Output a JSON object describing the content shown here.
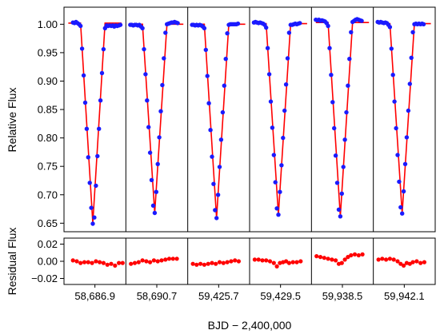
{
  "chart_data": {
    "type": "scatter",
    "xlabel": "BJD − 2,400,000",
    "colors": {
      "data_points": "#1a1aff",
      "model": "#ff0000",
      "residuals": "#ff0000",
      "frame": "#000000"
    },
    "top_panel": {
      "ylabel": "Relative Flux",
      "ylim": [
        0.635,
        1.03
      ],
      "yticks": [
        1.0,
        0.95,
        0.9,
        0.85,
        0.8,
        0.75,
        0.7,
        0.65
      ],
      "ytick_labels": [
        "1.00",
        "0.95",
        "0.90",
        "0.85",
        "0.80",
        "0.75",
        "0.70",
        "0.65"
      ]
    },
    "bottom_panel": {
      "ylabel": "Residual Flux",
      "ylim": [
        -0.027,
        0.027
      ],
      "yticks": [
        0.02,
        0.0,
        -0.02
      ],
      "ytick_labels": [
        "0.02",
        "0.00",
        "−0.02"
      ]
    },
    "windows": [
      {
        "label": "58,686.9",
        "depth": 0.65,
        "oot": 1.002,
        "points": [
          [
            -0.4,
            1.003
          ],
          [
            -0.36,
            1.002
          ],
          [
            -0.32,
            1.004
          ],
          [
            -0.28,
            1.002
          ],
          [
            -0.24,
            1.0
          ],
          [
            -0.2,
            0.997
          ],
          [
            -0.16,
            0.957
          ],
          [
            -0.12,
            0.91
          ],
          [
            -0.08,
            0.862
          ],
          [
            -0.04,
            0.816
          ],
          [
            0.0,
            0.766
          ],
          [
            0.04,
            0.721
          ],
          [
            0.08,
            0.677
          ],
          [
            0.12,
            0.649
          ],
          [
            0.16,
            0.66
          ],
          [
            0.2,
            0.716
          ],
          [
            0.24,
            0.768
          ],
          [
            0.28,
            0.816
          ],
          [
            0.32,
            0.866
          ],
          [
            0.36,
            0.914
          ],
          [
            0.4,
            0.956
          ],
          [
            0.44,
            0.993
          ],
          [
            0.48,
            0.998
          ],
          [
            0.52,
            0.997
          ],
          [
            0.56,
            0.998
          ],
          [
            0.6,
            0.997
          ],
          [
            0.64,
            0.998
          ],
          [
            0.68,
            0.996
          ],
          [
            0.72,
            0.998
          ],
          [
            0.76,
            0.997
          ],
          [
            0.8,
            0.998
          ],
          [
            0.84,
            0.999
          ]
        ],
        "residuals": [
          [
            -0.4,
            0.001
          ],
          [
            -0.3,
            0.0
          ],
          [
            -0.2,
            -0.002
          ],
          [
            -0.1,
            -0.001
          ],
          [
            0.0,
            -0.001
          ],
          [
            0.1,
            -0.002
          ],
          [
            0.2,
            0.0
          ],
          [
            0.3,
            -0.001
          ],
          [
            0.4,
            -0.002
          ],
          [
            0.5,
            -0.004
          ],
          [
            0.6,
            -0.003
          ],
          [
            0.7,
            -0.005
          ],
          [
            0.8,
            -0.002
          ],
          [
            0.9,
            -0.002
          ]
        ]
      },
      {
        "label": "58,690.7",
        "depth": 0.668,
        "oot": 1.0,
        "points": [
          [
            -0.52,
            0.999
          ],
          [
            -0.48,
            0.999
          ],
          [
            -0.44,
            0.998
          ],
          [
            -0.4,
            0.999
          ],
          [
            -0.36,
            0.999
          ],
          [
            -0.32,
            0.998
          ],
          [
            -0.28,
            0.999
          ],
          [
            -0.24,
            0.996
          ],
          [
            -0.2,
            0.993
          ],
          [
            -0.16,
            0.956
          ],
          [
            -0.12,
            0.912
          ],
          [
            -0.08,
            0.866
          ],
          [
            -0.04,
            0.819
          ],
          [
            0.0,
            0.774
          ],
          [
            0.04,
            0.726
          ],
          [
            0.08,
            0.681
          ],
          [
            0.12,
            0.668
          ],
          [
            0.16,
            0.705
          ],
          [
            0.2,
            0.754
          ],
          [
            0.24,
            0.801
          ],
          [
            0.28,
            0.847
          ],
          [
            0.32,
            0.893
          ],
          [
            0.36,
            0.94
          ],
          [
            0.4,
            0.985
          ],
          [
            0.44,
            1.0
          ],
          [
            0.48,
            1.001
          ],
          [
            0.52,
            1.002
          ],
          [
            0.56,
            1.003
          ],
          [
            0.6,
            1.003
          ],
          [
            0.64,
            1.004
          ],
          [
            0.68,
            1.003
          ],
          [
            0.72,
            1.002
          ]
        ],
        "residuals": [
          [
            -0.5,
            -0.003
          ],
          [
            -0.4,
            -0.002
          ],
          [
            -0.3,
            -0.001
          ],
          [
            -0.2,
            0.001
          ],
          [
            -0.1,
            0.0
          ],
          [
            0.0,
            -0.001
          ],
          [
            0.1,
            0.001
          ],
          [
            0.2,
            0.0
          ],
          [
            0.3,
            0.001
          ],
          [
            0.4,
            0.002
          ],
          [
            0.5,
            0.003
          ],
          [
            0.6,
            0.003
          ],
          [
            0.7,
            0.003
          ]
        ]
      },
      {
        "label": "59,425.7",
        "depth": 0.659,
        "oot": 1.0,
        "points": [
          [
            -0.52,
            0.999
          ],
          [
            -0.48,
            0.999
          ],
          [
            -0.44,
            0.998
          ],
          [
            -0.4,
            0.999
          ],
          [
            -0.36,
            0.998
          ],
          [
            -0.32,
            0.999
          ],
          [
            -0.28,
            0.998
          ],
          [
            -0.24,
            0.996
          ],
          [
            -0.2,
            0.993
          ],
          [
            -0.16,
            0.955
          ],
          [
            -0.12,
            0.909
          ],
          [
            -0.08,
            0.861
          ],
          [
            -0.04,
            0.814
          ],
          [
            0.0,
            0.767
          ],
          [
            0.04,
            0.719
          ],
          [
            0.08,
            0.673
          ],
          [
            0.12,
            0.659
          ],
          [
            0.16,
            0.7
          ],
          [
            0.2,
            0.749
          ],
          [
            0.24,
            0.797
          ],
          [
            0.28,
            0.845
          ],
          [
            0.32,
            0.892
          ],
          [
            0.36,
            0.939
          ],
          [
            0.4,
            0.984
          ],
          [
            0.44,
            0.999
          ],
          [
            0.48,
            1.0
          ],
          [
            0.52,
            1.0
          ],
          [
            0.56,
            1.0
          ],
          [
            0.6,
            1.0
          ],
          [
            0.64,
            1.0
          ],
          [
            0.68,
            1.001
          ]
        ],
        "residuals": [
          [
            -0.5,
            -0.003
          ],
          [
            -0.4,
            -0.004
          ],
          [
            -0.3,
            -0.003
          ],
          [
            -0.2,
            -0.004
          ],
          [
            -0.1,
            -0.003
          ],
          [
            0.0,
            -0.002
          ],
          [
            0.1,
            -0.003
          ],
          [
            0.2,
            -0.001
          ],
          [
            0.3,
            -0.002
          ],
          [
            0.4,
            -0.001
          ],
          [
            0.5,
            0.0
          ],
          [
            0.6,
            0.001
          ],
          [
            0.7,
            0.0
          ]
        ]
      },
      {
        "label": "59,429.5",
        "depth": 0.665,
        "oot": 1.001,
        "points": [
          [
            -0.52,
            1.003
          ],
          [
            -0.48,
            1.004
          ],
          [
            -0.44,
            1.003
          ],
          [
            -0.4,
            1.002
          ],
          [
            -0.36,
            1.003
          ],
          [
            -0.32,
            1.002
          ],
          [
            -0.28,
            1.001
          ],
          [
            -0.24,
            0.999
          ],
          [
            -0.2,
            0.994
          ],
          [
            -0.16,
            0.958
          ],
          [
            -0.12,
            0.912
          ],
          [
            -0.08,
            0.864
          ],
          [
            -0.04,
            0.818
          ],
          [
            0.0,
            0.77
          ],
          [
            0.04,
            0.722
          ],
          [
            0.08,
            0.676
          ],
          [
            0.12,
            0.665
          ],
          [
            0.16,
            0.705
          ],
          [
            0.2,
            0.752
          ],
          [
            0.24,
            0.8
          ],
          [
            0.28,
            0.848
          ],
          [
            0.32,
            0.894
          ],
          [
            0.36,
            0.94
          ],
          [
            0.4,
            0.985
          ],
          [
            0.44,
            0.999
          ],
          [
            0.48,
            0.999
          ],
          [
            0.52,
            1.0
          ],
          [
            0.56,
            1.001
          ],
          [
            0.6,
            1.0
          ],
          [
            0.64,
            1.001
          ],
          [
            0.68,
            1.002
          ]
        ],
        "residuals": [
          [
            -0.5,
            0.002
          ],
          [
            -0.4,
            0.002
          ],
          [
            -0.3,
            0.001
          ],
          [
            -0.2,
            0.001
          ],
          [
            -0.1,
            0.0
          ],
          [
            0.0,
            -0.002
          ],
          [
            0.08,
            -0.006
          ],
          [
            0.16,
            -0.002
          ],
          [
            0.24,
            -0.001
          ],
          [
            0.32,
            0.0
          ],
          [
            0.4,
            -0.002
          ],
          [
            0.5,
            -0.001
          ],
          [
            0.6,
            -0.001
          ],
          [
            0.7,
            0.0
          ]
        ]
      },
      {
        "label": "59,938.5",
        "depth": 0.662,
        "oot": 1.003,
        "points": [
          [
            -0.52,
            1.008
          ],
          [
            -0.48,
            1.007
          ],
          [
            -0.44,
            1.008
          ],
          [
            -0.4,
            1.006
          ],
          [
            -0.36,
            1.007
          ],
          [
            -0.32,
            1.006
          ],
          [
            -0.28,
            1.005
          ],
          [
            -0.24,
            1.002
          ],
          [
            -0.2,
            0.997
          ],
          [
            -0.16,
            0.958
          ],
          [
            -0.12,
            0.911
          ],
          [
            -0.08,
            0.863
          ],
          [
            -0.04,
            0.817
          ],
          [
            0.0,
            0.769
          ],
          [
            0.04,
            0.721
          ],
          [
            0.08,
            0.674
          ],
          [
            0.12,
            0.662
          ],
          [
            0.16,
            0.702
          ],
          [
            0.2,
            0.749
          ],
          [
            0.24,
            0.797
          ],
          [
            0.28,
            0.845
          ],
          [
            0.32,
            0.892
          ],
          [
            0.36,
            0.939
          ],
          [
            0.4,
            0.986
          ],
          [
            0.44,
            1.004
          ],
          [
            0.48,
            1.006
          ],
          [
            0.52,
            1.008
          ],
          [
            0.56,
            1.009
          ],
          [
            0.6,
            1.008
          ],
          [
            0.64,
            1.007
          ],
          [
            0.68,
            1.006
          ]
        ],
        "residuals": [
          [
            -0.5,
            0.006
          ],
          [
            -0.4,
            0.005
          ],
          [
            -0.3,
            0.004
          ],
          [
            -0.2,
            0.003
          ],
          [
            -0.1,
            0.002
          ],
          [
            0.0,
            0.001
          ],
          [
            0.08,
            -0.003
          ],
          [
            0.16,
            -0.002
          ],
          [
            0.24,
            0.002
          ],
          [
            0.32,
            0.005
          ],
          [
            0.4,
            0.007
          ],
          [
            0.5,
            0.008
          ],
          [
            0.6,
            0.007
          ],
          [
            0.7,
            0.008
          ]
        ]
      },
      {
        "label": "59,942.1",
        "depth": 0.667,
        "oot": 1.001,
        "points": [
          [
            -0.52,
            1.004
          ],
          [
            -0.48,
            1.003
          ],
          [
            -0.44,
            1.004
          ],
          [
            -0.4,
            1.003
          ],
          [
            -0.36,
            1.002
          ],
          [
            -0.32,
            1.003
          ],
          [
            -0.28,
            1.002
          ],
          [
            -0.24,
            0.999
          ],
          [
            -0.2,
            0.995
          ],
          [
            -0.16,
            0.957
          ],
          [
            -0.12,
            0.911
          ],
          [
            -0.08,
            0.864
          ],
          [
            -0.04,
            0.817
          ],
          [
            0.0,
            0.77
          ],
          [
            0.04,
            0.723
          ],
          [
            0.08,
            0.678
          ],
          [
            0.12,
            0.667
          ],
          [
            0.16,
            0.706
          ],
          [
            0.2,
            0.754
          ],
          [
            0.24,
            0.801
          ],
          [
            0.28,
            0.848
          ],
          [
            0.32,
            0.895
          ],
          [
            0.36,
            0.941
          ],
          [
            0.4,
            0.986
          ],
          [
            0.44,
            1.0
          ],
          [
            0.48,
            1.001
          ],
          [
            0.52,
            1.0
          ],
          [
            0.56,
            1.001
          ],
          [
            0.6,
            1.0
          ],
          [
            0.64,
            1.001
          ],
          [
            0.68,
            1.0
          ]
        ],
        "residuals": [
          [
            -0.5,
            0.002
          ],
          [
            -0.4,
            0.003
          ],
          [
            -0.3,
            0.002
          ],
          [
            -0.2,
            0.003
          ],
          [
            -0.1,
            0.002
          ],
          [
            0.0,
            0.0
          ],
          [
            0.08,
            -0.003
          ],
          [
            0.16,
            -0.005
          ],
          [
            0.24,
            -0.002
          ],
          [
            0.32,
            -0.003
          ],
          [
            0.4,
            -0.001
          ],
          [
            0.5,
            0.0
          ],
          [
            0.6,
            -0.002
          ],
          [
            0.7,
            -0.001
          ]
        ]
      }
    ]
  }
}
